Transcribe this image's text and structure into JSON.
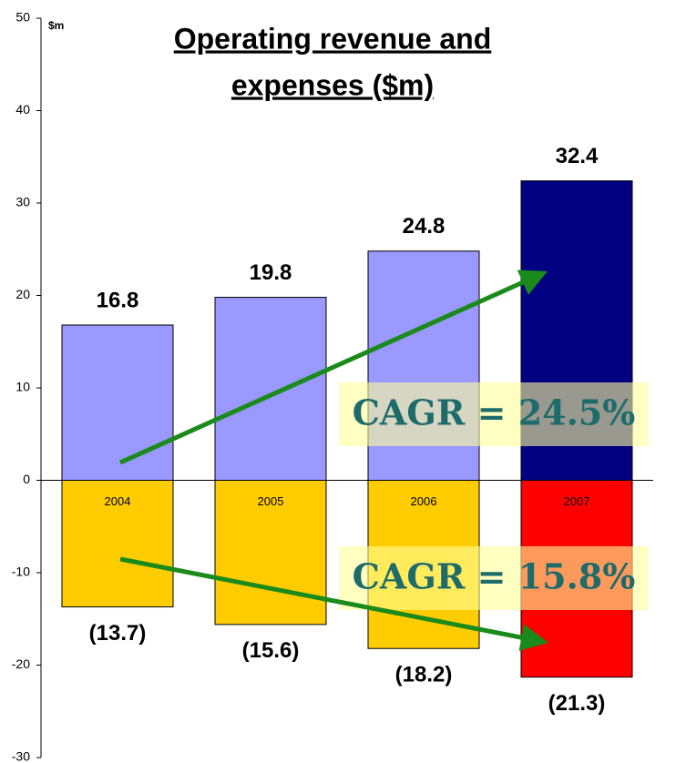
{
  "chart_data": {
    "type": "bar",
    "title_lines": [
      "Operating revenue and",
      "expenses ($m)"
    ],
    "y_axis_label": "$m",
    "categories": [
      "2004",
      "2005",
      "2006",
      "2007"
    ],
    "series": [
      {
        "values": [
          16.8,
          19.8,
          24.8,
          32.4
        ],
        "colors": [
          "#9999ff",
          "#9999ff",
          "#9999ff",
          "#000080"
        ]
      },
      {
        "values": [
          -13.7,
          -15.6,
          -18.2,
          -21.3
        ],
        "value_labels": [
          "(13.7)",
          "(15.6)",
          "(18.2)",
          "(21.3)"
        ],
        "colors": [
          "#ffcc00",
          "#ffcc00",
          "#ffcc00",
          "#ff0000"
        ]
      }
    ],
    "annotations": [
      "CAGR = 24.5%",
      "CAGR = 15.8%"
    ],
    "ylim": [
      -30,
      50
    ],
    "yticks": [
      -30,
      -20,
      -10,
      0,
      10,
      20,
      30,
      40,
      50
    ]
  }
}
